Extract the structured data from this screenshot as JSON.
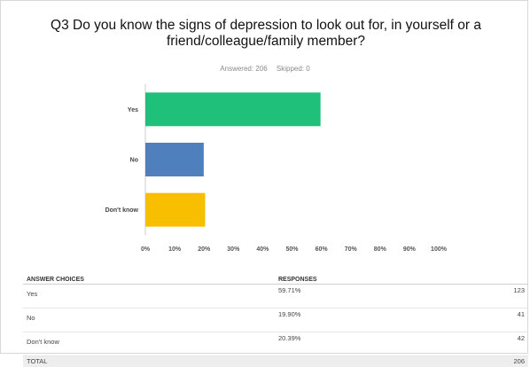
{
  "question": {
    "title": "Q3 Do you know the signs of depression to look out for, in yourself or a friend/colleague/family member?",
    "answered": "Answered: 206",
    "skipped": "Skipped: 0"
  },
  "chart_data": {
    "type": "bar",
    "orientation": "horizontal",
    "categories": [
      "Yes",
      "No",
      "Don't know"
    ],
    "values": [
      59.71,
      19.9,
      20.39
    ],
    "colors": [
      "#1fc079",
      "#4f7fbc",
      "#f7bf00"
    ],
    "xticks": [
      "0%",
      "10%",
      "20%",
      "30%",
      "40%",
      "50%",
      "60%",
      "70%",
      "80%",
      "90%",
      "100%"
    ],
    "xlim": [
      0,
      100
    ],
    "grid": false
  },
  "table": {
    "headers": [
      "ANSWER CHOICES",
      "RESPONSES",
      ""
    ],
    "rows": [
      {
        "choice": "Yes",
        "percent": "59.71%",
        "count": "123"
      },
      {
        "choice": "No",
        "percent": "19.90%",
        "count": "41"
      },
      {
        "choice": "Don't know",
        "percent": "20.39%",
        "count": "42"
      }
    ],
    "total": {
      "label": "TOTAL",
      "count": "206"
    }
  }
}
